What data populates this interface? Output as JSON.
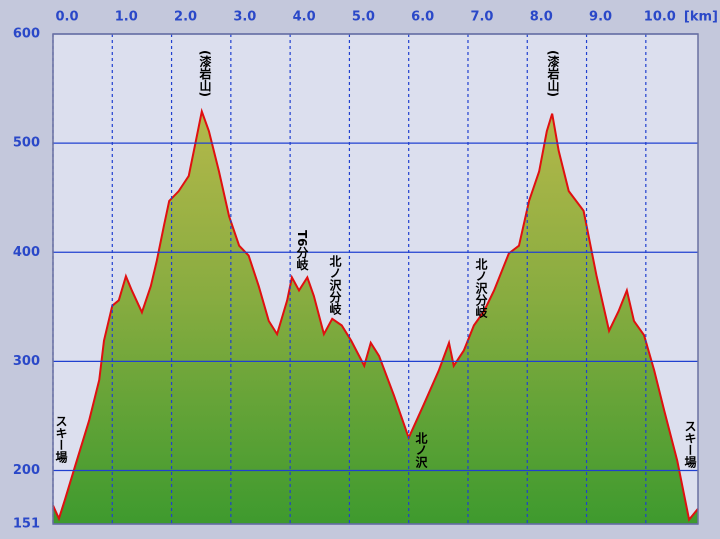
{
  "chart_data": {
    "type": "area",
    "x": [
      0,
      0.1,
      0.2,
      0.35,
      0.61,
      0.78,
      0.86,
      1.0,
      1.11,
      1.23,
      1.33,
      1.5,
      1.65,
      1.75,
      1.87,
      1.96,
      2.12,
      2.29,
      2.41,
      2.51,
      2.63,
      2.8,
      2.97,
      3.14,
      3.3,
      3.47,
      3.64,
      3.78,
      3.95,
      4.03,
      4.15,
      4.29,
      4.4,
      4.57,
      4.71,
      4.87,
      5.03,
      5.25,
      5.36,
      5.5,
      5.75,
      6.0,
      6.25,
      6.51,
      6.68,
      6.76,
      6.93,
      7.1,
      7.27,
      7.44,
      7.69,
      7.86,
      8.03,
      8.2,
      8.33,
      8.42,
      8.53,
      8.7,
      8.95,
      9.17,
      9.38,
      9.54,
      9.68,
      9.8,
      9.97,
      10.14,
      10.31,
      10.53,
      10.73,
      10.88
    ],
    "series": [
      {
        "color": "#e01010",
        "values": [
          168,
          156,
          173,
          200,
          246,
          283,
          319,
          351,
          356,
          378,
          365,
          345,
          369,
          392,
          424,
          447,
          456,
          470,
          502,
          529,
          511,
          474,
          433,
          406,
          397,
          369,
          337,
          325,
          356,
          377,
          365,
          377,
          360,
          325,
          339,
          333,
          319,
          296,
          317,
          305,
          269,
          230,
          260,
          292,
          317,
          296,
          310,
          333,
          346,
          365,
          399,
          406,
          447,
          474,
          511,
          527,
          493,
          456,
          438,
          378,
          328,
          346,
          365,
          337,
          324,
          292,
          255,
          209,
          155,
          165
        ]
      }
    ],
    "xlim": [
      0,
      10.88
    ],
    "xticks": [
      {
        "value": 0,
        "label": "0.0"
      },
      {
        "value": 1,
        "label": "1.0"
      },
      {
        "value": 2,
        "label": "2.0"
      },
      {
        "value": 3,
        "label": "3.0"
      },
      {
        "value": 4,
        "label": "4.0"
      },
      {
        "value": 5,
        "label": "5.0"
      },
      {
        "value": 6,
        "label": "6.0"
      },
      {
        "value": 7,
        "label": "7.0"
      },
      {
        "value": 8,
        "label": "8.0"
      },
      {
        "value": 9,
        "label": "9.0"
      },
      {
        "value": 10,
        "label": "10.0"
      }
    ],
    "x_label": "[km]",
    "ylim": [
      151,
      600
    ],
    "yticks": [
      151,
      200,
      300,
      400,
      500,
      600
    ],
    "grid": true,
    "annotations": [
      "(漆岩山)",
      "T6分岐",
      "北ノ沢分岐",
      "北ノ沢",
      "北ノ沢分岐",
      "(漆岩山)",
      "スキー場",
      "スキー場"
    ]
  }
}
